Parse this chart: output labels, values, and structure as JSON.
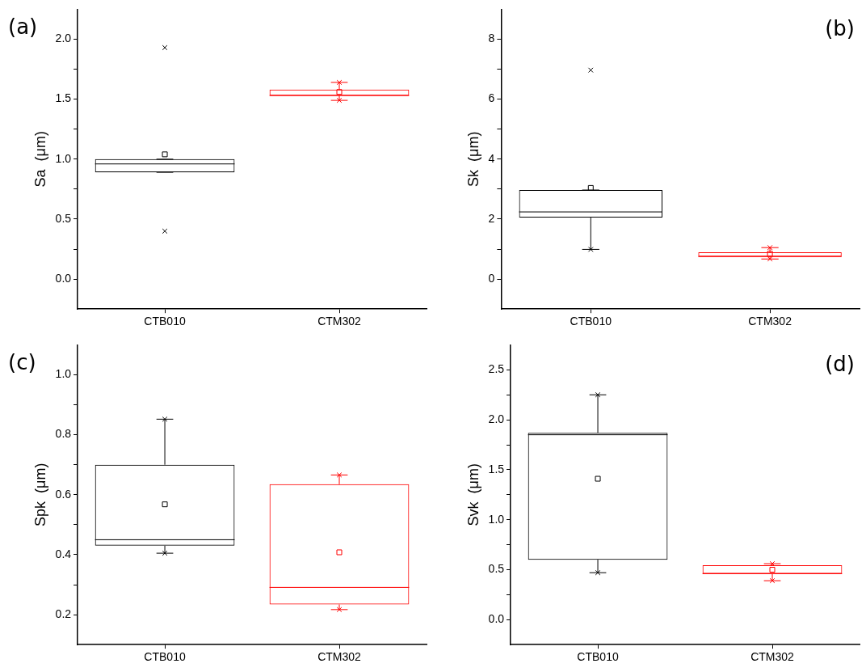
{
  "chart_data": [
    {
      "type": "box",
      "annotations": [
        "(a)"
      ],
      "ylabel": "Sa  (μm)",
      "categories": [
        "CTB010",
        "CTM302"
      ],
      "colors": [
        "#000000",
        "#ff0000"
      ],
      "ylim": [
        -0.25,
        2.25
      ],
      "yticks": [
        {
          "value": 0,
          "label": "0.0"
        },
        {
          "value": 0.25,
          "label": null
        },
        {
          "value": 0.5,
          "label": "0.5"
        },
        {
          "value": 0.75,
          "label": null
        },
        {
          "value": 1,
          "label": "1.0"
        },
        {
          "value": 1.25,
          "label": null
        },
        {
          "value": 1.5,
          "label": "1.5"
        },
        {
          "value": 1.75,
          "label": null
        },
        {
          "value": 2,
          "label": "2.0"
        }
      ],
      "grid": false,
      "boxes": [
        {
          "low": 0.89,
          "q1": 0.89,
          "median": 0.96,
          "q3": 1.0,
          "high": 1.0,
          "mean": 1.04
        },
        {
          "low": 1.49,
          "q1": 1.53,
          "median": 1.53,
          "q3": 1.58,
          "high": 1.64,
          "mean": 1.56
        }
      ],
      "series": [
        {
          "type": "scatter",
          "marker": "cross",
          "x": [
            "CTB010",
            "CTB010",
            "CTM302",
            "CTM302"
          ],
          "values": [
            1.93,
            0.4,
            1.64,
            1.49
          ],
          "colors": [
            "#000000",
            "#000000",
            "#ff0000",
            "#ff0000"
          ]
        }
      ]
    },
    {
      "type": "box",
      "annotations": [
        "(b)"
      ],
      "ylabel": "Sk  (μm)",
      "categories": [
        "CTB010",
        "CTM302"
      ],
      "colors": [
        "#000000",
        "#ff0000"
      ],
      "ylim": [
        -1,
        9
      ],
      "yticks": [
        0,
        {
          "value": 1,
          "label": null
        },
        2,
        {
          "value": 3,
          "label": null
        },
        4,
        {
          "value": 5,
          "label": null
        },
        6,
        {
          "value": 7,
          "label": null
        },
        8
      ],
      "grid": false,
      "boxes": [
        {
          "low": 0.99,
          "q1": 2.05,
          "median": 2.24,
          "q3": 2.97,
          "high": 2.97,
          "mean": 3.04
        },
        {
          "low": 0.67,
          "q1": 0.75,
          "median": 0.75,
          "q3": 0.89,
          "high": 1.05,
          "mean": 0.85
        }
      ],
      "series": [
        {
          "type": "scatter",
          "marker": "cross",
          "x": [
            "CTB010",
            "CTB010",
            "CTM302",
            "CTM302"
          ],
          "values": [
            6.97,
            0.99,
            1.05,
            0.67
          ],
          "colors": [
            "#000000",
            "#000000",
            "#ff0000",
            "#ff0000"
          ]
        }
      ]
    },
    {
      "type": "box",
      "annotations": [
        "(c)"
      ],
      "ylabel": "Spk  (μm)",
      "categories": [
        "CTB010",
        "CTM302"
      ],
      "colors": [
        "#000000",
        "#ff0000"
      ],
      "ylim": [
        0.1,
        1.1
      ],
      "yticks": [
        {
          "value": 0.2,
          "label": "0.2"
        },
        {
          "value": 0.3,
          "label": null
        },
        {
          "value": 0.4,
          "label": "0.4"
        },
        {
          "value": 0.5,
          "label": null
        },
        {
          "value": 0.6,
          "label": "0.6"
        },
        {
          "value": 0.7,
          "label": null
        },
        {
          "value": 0.8,
          "label": "0.8"
        },
        {
          "value": 0.9,
          "label": null
        },
        {
          "value": 1,
          "label": "1.0"
        }
      ],
      "grid": false,
      "boxes": [
        {
          "low": 0.405,
          "q1": 0.43,
          "median": 0.45,
          "q3": 0.7,
          "high": 0.852,
          "mean": 0.568
        },
        {
          "low": 0.217,
          "q1": 0.234,
          "median": 0.291,
          "q3": 0.635,
          "high": 0.666,
          "mean": 0.408
        }
      ],
      "series": [
        {
          "type": "scatter",
          "marker": "cross",
          "x": [
            "CTB010",
            "CTB010",
            "CTM302",
            "CTM302"
          ],
          "values": [
            0.852,
            0.405,
            0.666,
            0.217
          ],
          "colors": [
            "#000000",
            "#000000",
            "#ff0000",
            "#ff0000"
          ]
        }
      ]
    },
    {
      "type": "box",
      "annotations": [
        "(d)"
      ],
      "ylabel": "Svk  (μm)",
      "categories": [
        "CTB010",
        "CTM302"
      ],
      "colors": [
        "#000000",
        "#ff0000"
      ],
      "ylim": [
        -0.25,
        2.75
      ],
      "yticks": [
        {
          "value": 0,
          "label": "0.0"
        },
        {
          "value": 0.25,
          "label": null
        },
        {
          "value": 0.5,
          "label": "0.5"
        },
        {
          "value": 0.75,
          "label": null
        },
        {
          "value": 1,
          "label": "1.0"
        },
        {
          "value": 1.25,
          "label": null
        },
        {
          "value": 1.5,
          "label": "1.5"
        },
        {
          "value": 1.75,
          "label": null
        },
        {
          "value": 2,
          "label": "2.0"
        },
        {
          "value": 2.25,
          "label": null
        },
        {
          "value": 2.5,
          "label": "2.5"
        }
      ],
      "grid": false,
      "boxes": [
        {
          "low": 0.47,
          "q1": 0.6,
          "median": 1.85,
          "q3": 1.87,
          "high": 2.25,
          "mean": 1.41
        },
        {
          "low": 0.39,
          "q1": 0.46,
          "median": 0.46,
          "q3": 0.545,
          "high": 0.56,
          "mean": 0.5
        }
      ],
      "series": [
        {
          "type": "scatter",
          "marker": "cross",
          "x": [
            "CTB010",
            "CTB010",
            "CTM302",
            "CTM302"
          ],
          "values": [
            2.25,
            0.47,
            0.56,
            0.39
          ],
          "colors": [
            "#000000",
            "#000000",
            "#ff0000",
            "#ff0000"
          ]
        }
      ]
    }
  ]
}
